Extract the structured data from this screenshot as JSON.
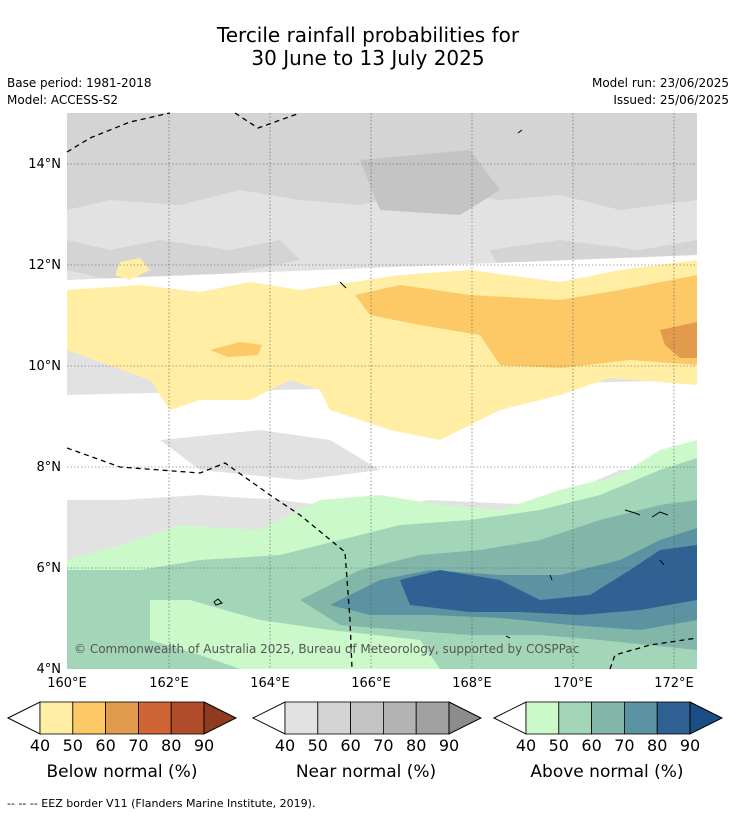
{
  "title": {
    "line1": "Tercile rainfall probabilities for",
    "line2": "30 June to 13 July 2025"
  },
  "meta": {
    "base_period": "Base period: 1981-2018",
    "model": "Model: ACCESS-S2",
    "model_run": "Model run: 23/06/2025",
    "issued": "Issued: 25/06/2025"
  },
  "map": {
    "lon_labels": [
      "160°E",
      "162°E",
      "164°E",
      "166°E",
      "168°E",
      "170°E",
      "172°E"
    ],
    "lat_labels": [
      "14°N",
      "12°N",
      "10°N",
      "8°N",
      "6°N",
      "4°N"
    ],
    "copyright": "© Commonwealth of Australia 2025, Bureau of Meteorology, supported by COSPPac"
  },
  "legend": {
    "ticks": [
      "40",
      "50",
      "60",
      "70",
      "80",
      "90"
    ],
    "below": {
      "label": "Below normal (%)",
      "colors": [
        "#ffeea3",
        "#fdc966",
        "#e29a4c",
        "#cf6434",
        "#b04c2a",
        "#923a20"
      ]
    },
    "near": {
      "label": "Near normal (%)",
      "colors": [
        "#e2e2e2",
        "#d4d4d4",
        "#c4c4c4",
        "#b3b3b3",
        "#a1a1a1",
        "#8c8c8c"
      ]
    },
    "above": {
      "label": "Above normal (%)",
      "colors": [
        "#cbf9c9",
        "#a3d6b9",
        "#82b6a9",
        "#5c93a2",
        "#2f6293",
        "#1a4f86"
      ]
    }
  },
  "footer": "--  --  -- EEZ border V11 (Flanders Marine Institute, 2019)."
}
